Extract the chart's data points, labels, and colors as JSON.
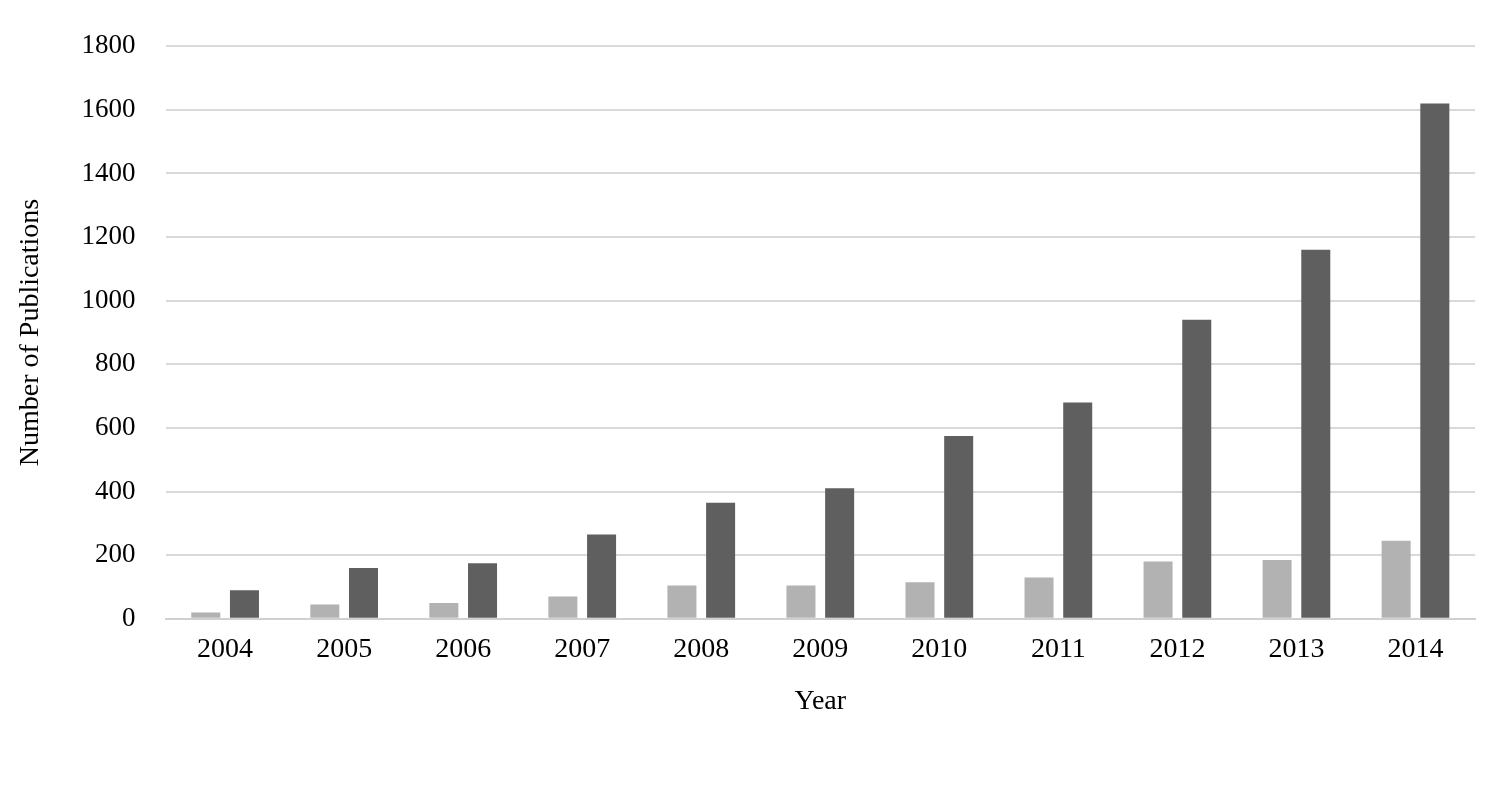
{
  "chart_data": {
    "type": "bar",
    "xlabel": "Year",
    "ylabel": "Number of Publications",
    "categories": [
      "2004",
      "2005",
      "2006",
      "2007",
      "2008",
      "2009",
      "2010",
      "2011",
      "2012",
      "2013",
      "2014"
    ],
    "series": [
      {
        "color": "#b2b2b2",
        "values": [
          20,
          45,
          50,
          70,
          105,
          105,
          115,
          130,
          180,
          185,
          245
        ]
      },
      {
        "color": "#5f5f5f",
        "values": [
          90,
          160,
          175,
          265,
          365,
          410,
          575,
          680,
          940,
          1160,
          1620
        ]
      }
    ],
    "ylim": [
      0,
      1800
    ],
    "yticks": [
      0,
      200,
      400,
      600,
      800,
      1000,
      1200,
      1400,
      1600,
      1800
    ],
    "grid": "y"
  }
}
